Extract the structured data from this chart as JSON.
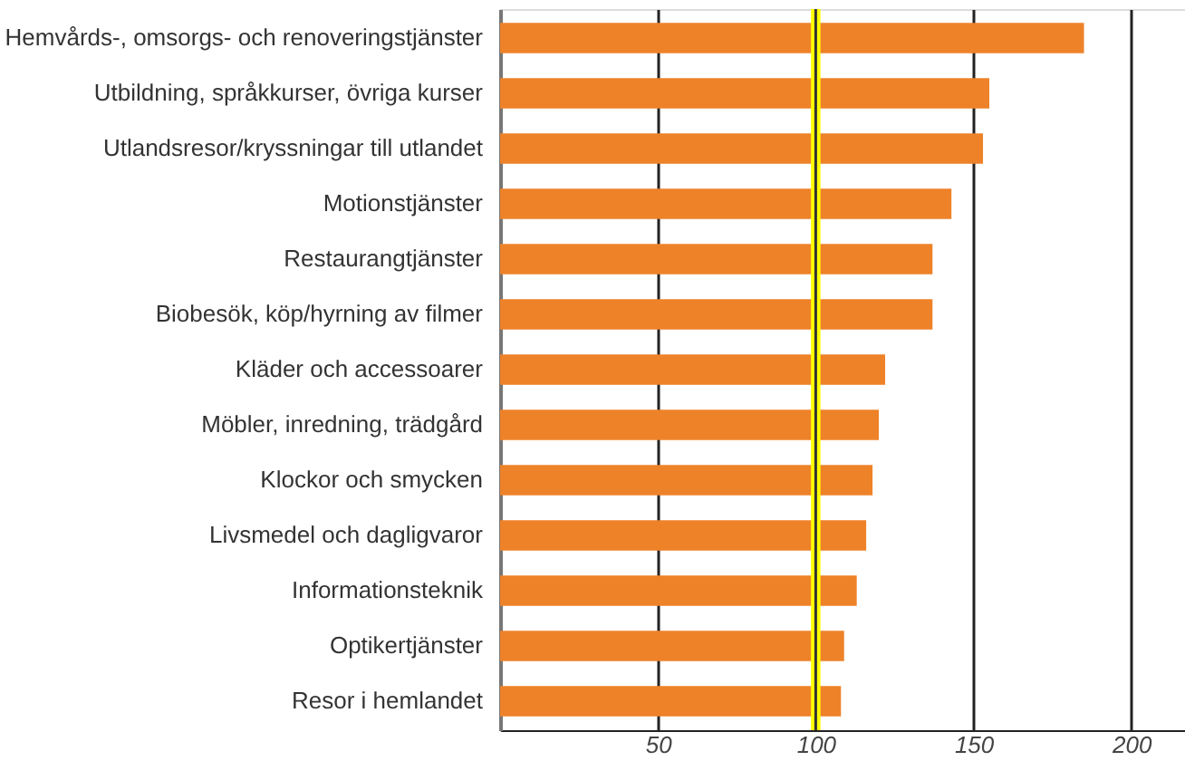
{
  "chart_data": {
    "type": "bar",
    "orientation": "horizontal",
    "categories": [
      "Hemvårds-, omsorgs- och renoveringstjänster",
      "Utbildning, språkkurser, övriga kurser",
      "Utlandsresor/kryssningar till utlandet",
      "Motionstjänster",
      "Restaurangtjänster",
      "Biobesök, köp/hyrning av filmer",
      "Kläder och accessoarer",
      "Möbler, inredning, trädgård",
      "Klockor och smycken",
      "Livsmedel och dagligvaror",
      "Informationsteknik",
      "Optikertjänster",
      "Resor i hemlandet"
    ],
    "values": [
      185,
      155,
      153,
      143,
      137,
      137,
      122,
      120,
      118,
      116,
      113,
      109,
      108
    ],
    "color": "#ee8229",
    "xlim": [
      0,
      217
    ],
    "xticks": [
      50,
      100,
      150,
      200
    ],
    "grid": "x",
    "bands": [
      {
        "axis": "x",
        "from": 98.5,
        "to": 101.5,
        "color": "#ffff00"
      }
    ],
    "ref_lines": [
      {
        "axis": "x",
        "value": 100,
        "color": "#333333"
      }
    ]
  }
}
